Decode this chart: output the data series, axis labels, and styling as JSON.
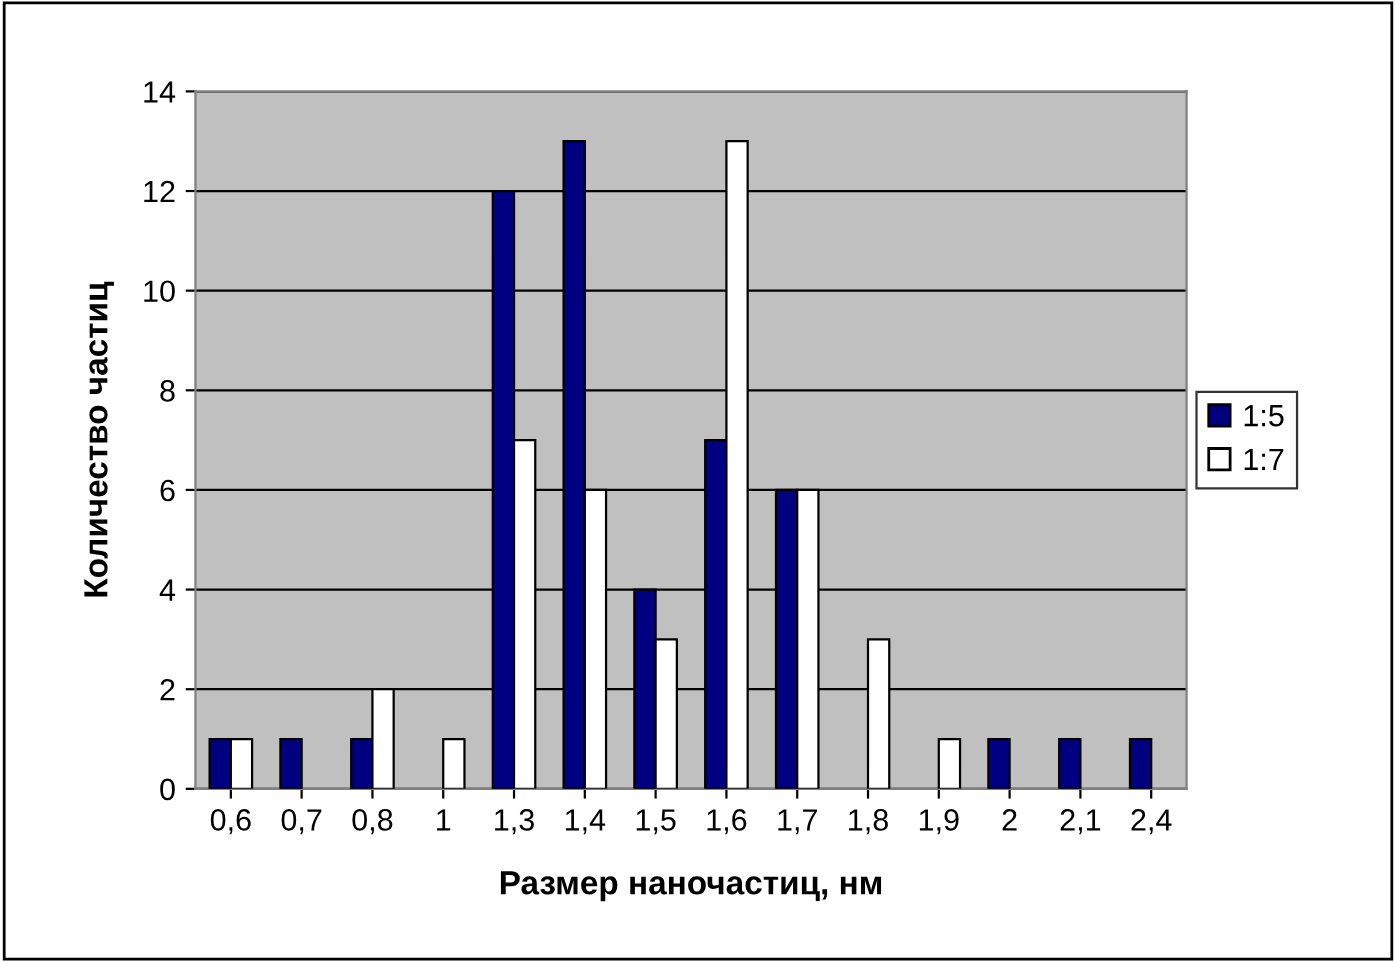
{
  "chart_data": {
    "type": "bar",
    "xlabel": "Размер наночастиц, нм",
    "ylabel": "Количество частиц",
    "categories": [
      "0,6",
      "0,7",
      "0,8",
      "1",
      "1,3",
      "1,4",
      "1,5",
      "1,6",
      "1,7",
      "1,8",
      "1,9",
      "2",
      "2,1",
      "2,4"
    ],
    "series": [
      {
        "name": "1:5",
        "color": "#000080",
        "values": [
          1,
          1,
          1,
          0,
          12,
          13,
          4,
          7,
          6,
          0,
          0,
          1,
          1,
          1
        ]
      },
      {
        "name": "1:7",
        "color": "#ffffff",
        "values": [
          1,
          0,
          2,
          1,
          7,
          6,
          3,
          13,
          6,
          3,
          1,
          0,
          0,
          0
        ]
      }
    ],
    "ylim": [
      0,
      14
    ],
    "yticks": [
      0,
      2,
      4,
      6,
      8,
      10,
      12,
      14
    ],
    "grid": "y",
    "legend": "right"
  }
}
